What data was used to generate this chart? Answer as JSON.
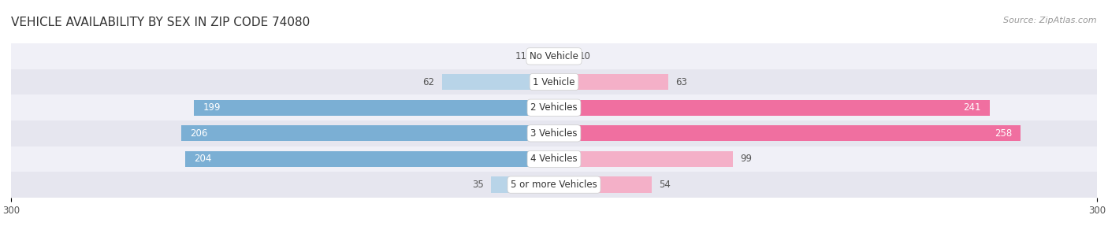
{
  "title": "VEHICLE AVAILABILITY BY SEX IN ZIP CODE 74080",
  "source": "Source: ZipAtlas.com",
  "categories": [
    "No Vehicle",
    "1 Vehicle",
    "2 Vehicles",
    "3 Vehicles",
    "4 Vehicles",
    "5 or more Vehicles"
  ],
  "male_values": [
    11,
    62,
    199,
    206,
    204,
    35
  ],
  "female_values": [
    10,
    63,
    241,
    258,
    99,
    54
  ],
  "male_color_dark": "#7bafd4",
  "female_color_dark": "#f06fa0",
  "male_color_light": "#b8d4e8",
  "female_color_light": "#f4b0c8",
  "axis_max": 300,
  "axis_min": -300,
  "bar_height": 0.62,
  "row_bg_colors": [
    "#f0f0f7",
    "#e6e6ef"
  ],
  "title_fontsize": 11,
  "label_fontsize": 8.5,
  "source_fontsize": 8,
  "threshold": 100
}
